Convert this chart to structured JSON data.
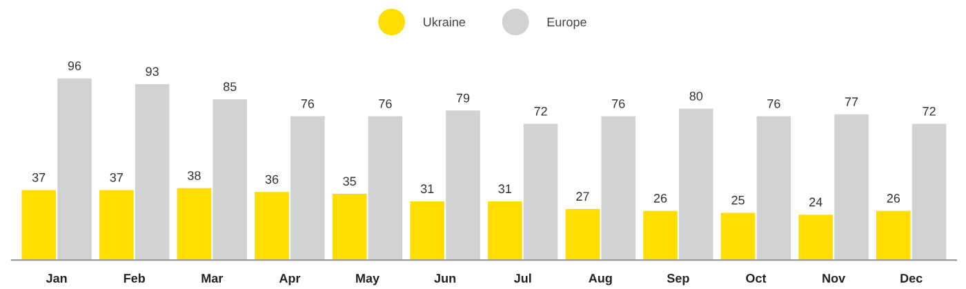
{
  "chart_data": {
    "type": "bar",
    "categories": [
      "Jan",
      "Feb",
      "Mar",
      "Apr",
      "May",
      "Jun",
      "Jul",
      "Aug",
      "Sep",
      "Oct",
      "Nov",
      "Dec"
    ],
    "series": [
      {
        "name": "Ukraine",
        "color": "#ffdd00",
        "values": [
          37,
          37,
          38,
          36,
          35,
          31,
          31,
          27,
          26,
          25,
          24,
          26
        ]
      },
      {
        "name": "Europe",
        "color": "#d1d2d4",
        "values": [
          96,
          93,
          85,
          76,
          76,
          79,
          72,
          76,
          80,
          76,
          77,
          72
        ]
      }
    ],
    "data_labels": true,
    "legend": "top",
    "grid": false
  }
}
